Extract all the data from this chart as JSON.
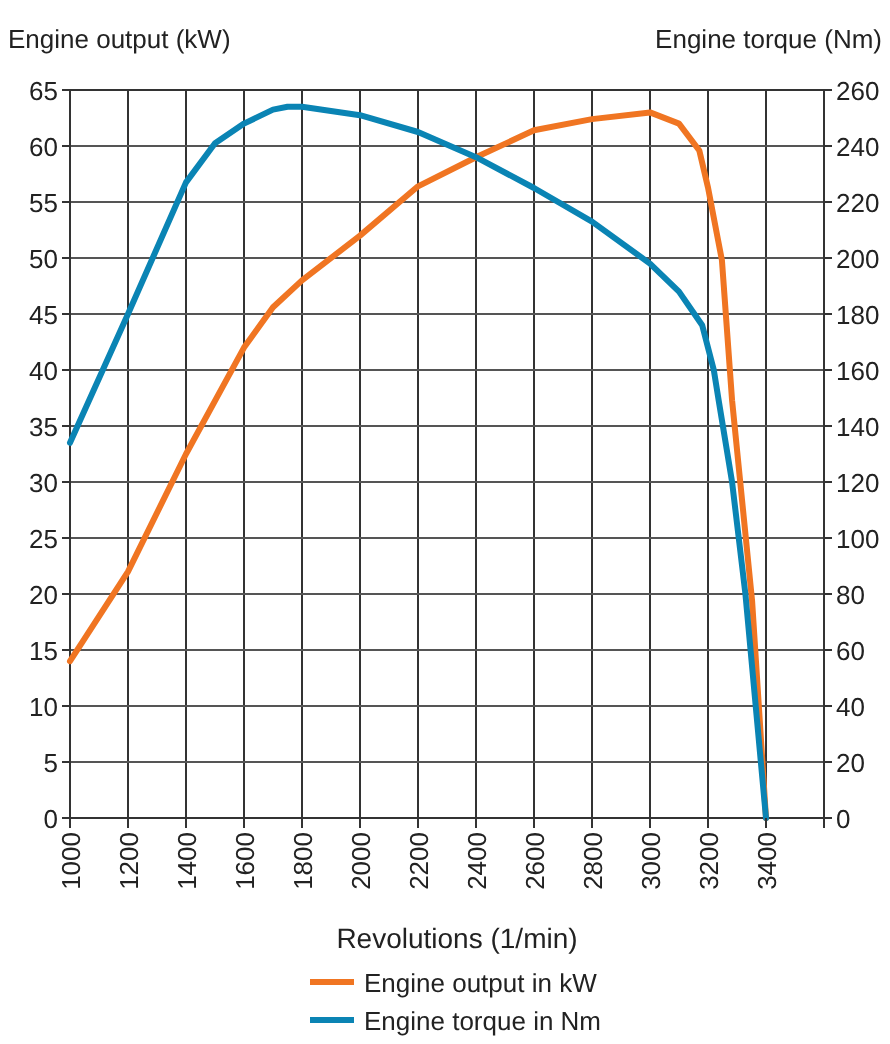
{
  "chart_data": {
    "type": "line",
    "xlabel": "Revolutions (1/min)",
    "ylabel": "Engine output (kW)",
    "y2label": "Engine torque (Nm)",
    "xlim": [
      1000,
      3600
    ],
    "xticks": [
      1000,
      1200,
      1400,
      1600,
      1800,
      2000,
      2200,
      2400,
      2600,
      2800,
      3000,
      3200,
      3400,
      {
        "value": 3600,
        "label": null
      }
    ],
    "ylim": [
      0,
      65
    ],
    "yticks": [
      0,
      5,
      10,
      15,
      20,
      25,
      30,
      35,
      40,
      45,
      50,
      55,
      60,
      65
    ],
    "y2lim": [
      0,
      260
    ],
    "y2ticks": [
      0,
      20,
      40,
      60,
      80,
      100,
      120,
      140,
      160,
      180,
      200,
      220,
      240,
      260
    ],
    "grid": true,
    "legend": "bottom",
    "marker": "none",
    "line_style": "solid",
    "series": [
      {
        "name": "Engine output in kW",
        "color": "#f07522",
        "x": [
          1000,
          1200,
          1400,
          1600,
          1700,
          1800,
          2000,
          2200,
          2400,
          2600,
          2800,
          3000,
          3100,
          3170,
          3200,
          3248,
          3283,
          3352,
          3400
        ],
        "values": [
          14,
          22,
          32.5,
          42,
          45.6,
          48,
          52,
          56.4,
          59,
          61.4,
          62.4,
          63,
          62,
          59.6,
          56.3,
          49.8,
          37.3,
          19.4,
          0
        ]
      },
      {
        "name": "Engine torque in Nm",
        "color": "#0a84b4",
        "axis": "y2",
        "x": [
          1000,
          1200,
          1400,
          1500,
          1600,
          1700,
          1750,
          1800,
          2000,
          2200,
          2400,
          2600,
          2800,
          3000,
          3100,
          3180,
          3220,
          3237,
          3283,
          3329,
          3400
        ],
        "values": [
          134,
          180,
          227,
          241,
          248,
          253,
          254,
          254,
          251,
          245,
          236,
          225,
          213,
          198,
          188,
          176,
          160,
          149,
          120,
          80,
          0
        ]
      }
    ]
  }
}
